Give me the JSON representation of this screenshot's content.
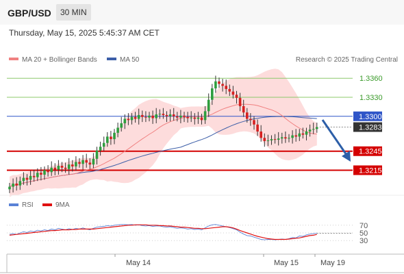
{
  "header": {
    "symbol": "GBP/USD",
    "timeframe": "30 MIN"
  },
  "timestamp": "Thursday, May 15, 2025 5:45:37 AM CET",
  "legend": {
    "ma20": "MA 20 + Bollinger Bands",
    "ma50": "MA 50",
    "source": "Research © 2025 Trading Central"
  },
  "colors": {
    "ma20": "#f08080",
    "ma50": "#3c5ea8",
    "bands": "#fdd6d6",
    "resistance": "#8cc86a",
    "support": "#d40000",
    "pivot": "#2f55c8",
    "up": "#2e9e3e",
    "down": "#d62020",
    "arrow": "#2d5fa8",
    "rsi": "#5a82d6",
    "rsi9": "#e01010"
  },
  "chart_data": [
    {
      "type": "candlestick",
      "title": "GBP/USD",
      "timeframe": "30 MIN",
      "x_tick_labels": [
        "May 14",
        "May 15",
        "May 19"
      ],
      "price_axis": {
        "ylim": [
          1.3181,
          1.3371
        ]
      },
      "levels": [
        {
          "label": "1.3360",
          "value": 1.336,
          "kind": "resistance"
        },
        {
          "label": "1.3330",
          "value": 1.333,
          "kind": "resistance"
        },
        {
          "label": "1.3300",
          "value": 1.33,
          "kind": "pivot"
        },
        {
          "label": "1.3283",
          "value": 1.3283,
          "kind": "current"
        },
        {
          "label": "1.3245",
          "value": 1.3245,
          "kind": "support"
        },
        {
          "label": "1.3215",
          "value": 1.3215,
          "kind": "support"
        }
      ],
      "series": [
        {
          "name": "MA 20 + Bollinger Bands",
          "type": "line+band"
        },
        {
          "name": "MA 50",
          "type": "line"
        }
      ],
      "candles_close": [
        1.3189,
        1.3194,
        1.3191,
        1.3198,
        1.3203,
        1.32,
        1.3206,
        1.3204,
        1.3211,
        1.3208,
        1.3215,
        1.3212,
        1.3219,
        1.3216,
        1.3222,
        1.3219,
        1.3217,
        1.3224,
        1.3221,
        1.3228,
        1.3225,
        1.3231,
        1.3227,
        1.3224,
        1.3233,
        1.3246,
        1.3252,
        1.3258,
        1.3268,
        1.3264,
        1.3274,
        1.3282,
        1.3289,
        1.3296,
        1.3294,
        1.3299,
        1.3296,
        1.3302,
        1.3299,
        1.3298,
        1.3301,
        1.3297,
        1.3303,
        1.3304,
        1.3302,
        1.33,
        1.3303,
        1.33,
        1.3298,
        1.3301,
        1.3299,
        1.3297,
        1.3298,
        1.3296,
        1.3298,
        1.3294,
        1.3308,
        1.3326,
        1.3344,
        1.3355,
        1.3351,
        1.3348,
        1.3343,
        1.3339,
        1.3334,
        1.3329,
        1.3316,
        1.3306,
        1.3296,
        1.3294,
        1.3287,
        1.3276,
        1.3266,
        1.3261,
        1.3262,
        1.3264,
        1.3263,
        1.3265,
        1.3267,
        1.3265,
        1.3266,
        1.327,
        1.3268,
        1.3273,
        1.3271,
        1.3276,
        1.3279,
        1.328,
        1.3283
      ]
    },
    {
      "type": "line",
      "title": "RSI",
      "series": [
        {
          "name": "RSI",
          "values": [
            46,
            48,
            46,
            50,
            53,
            51,
            55,
            53,
            57,
            55,
            58,
            56,
            60,
            58,
            62,
            60,
            58,
            61,
            59,
            62,
            60,
            63,
            60,
            58,
            62,
            65,
            66,
            67,
            69,
            68,
            70,
            71,
            72,
            72,
            71,
            72,
            70,
            71,
            69,
            68,
            69,
            67,
            68,
            68,
            66,
            65,
            66,
            64,
            62,
            63,
            62,
            60,
            61,
            59,
            60,
            58,
            63,
            68,
            71,
            72,
            70,
            68,
            66,
            64,
            61,
            58,
            52,
            47,
            43,
            42,
            39,
            36,
            33,
            32,
            33,
            33,
            32,
            33,
            34,
            33,
            35,
            38,
            37,
            42,
            41,
            45,
            47,
            48,
            49
          ]
        },
        {
          "name": "9MA",
          "values": [
            44,
            45,
            46,
            47,
            48,
            49,
            50,
            51,
            52,
            53,
            54,
            55,
            56,
            56,
            57,
            58,
            58,
            58,
            59,
            59,
            60,
            60,
            60,
            60,
            60,
            61,
            62,
            63,
            64,
            65,
            66,
            67,
            68,
            69,
            70,
            70,
            71,
            71,
            71,
            71,
            70,
            70,
            70,
            69,
            69,
            68,
            68,
            67,
            66,
            65,
            65,
            64,
            63,
            62,
            62,
            61,
            61,
            62,
            63,
            64,
            65,
            66,
            66,
            65,
            63,
            60,
            56,
            53,
            50,
            47,
            44,
            41,
            39,
            37,
            35,
            34,
            33,
            33,
            33,
            33,
            34,
            35,
            36,
            37,
            39,
            41,
            43,
            44,
            46
          ]
        }
      ],
      "y_tick_labels": [
        "70",
        "50",
        "30"
      ],
      "ylim": [
        0,
        100
      ],
      "x_tick_labels": [
        "May 14",
        "May 15",
        "May 19"
      ]
    }
  ]
}
